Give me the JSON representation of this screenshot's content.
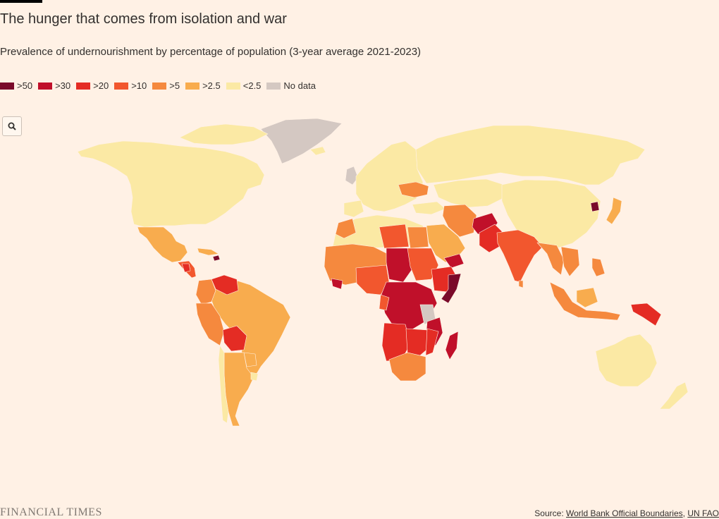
{
  "header": {
    "title": "The hunger that comes from isolation and war",
    "subtitle": "Prevalence of undernourishment by percentage of population (3-year average 2021-2023)"
  },
  "legend": [
    {
      "label": ">50",
      "color": "#7a0a2a"
    },
    {
      "label": ">30",
      "color": "#c0102a"
    },
    {
      "label": ">20",
      "color": "#e42c24"
    },
    {
      "label": ">10",
      "color": "#f2572e"
    },
    {
      "label": ">5",
      "color": "#f5893e"
    },
    {
      "label": ">2.5",
      "color": "#f8ac4e"
    },
    {
      "label": "<2.5",
      "color": "#fbe9a4"
    },
    {
      "label": "No data",
      "color": "#d4c8c2"
    }
  ],
  "controls": {
    "zoom_icon": "search-icon"
  },
  "footer": {
    "brand": "FINANCIAL TIMES",
    "source_prefix": "Source:",
    "source_link_1": "World Bank Official Boundaries",
    "source_sep": ",",
    "source_link_2": "UN FAO"
  }
}
